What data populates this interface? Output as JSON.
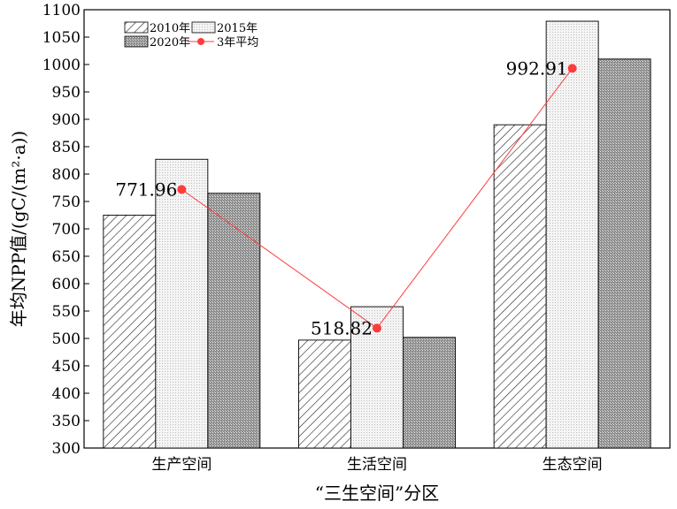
{
  "chart_data": {
    "type": "bar",
    "categories": [
      "生产空间",
      "生活空间",
      "生态空间"
    ],
    "series": [
      {
        "name": "2010年",
        "values": [
          725,
          497,
          890
        ],
        "pattern": "diagonal-hatch"
      },
      {
        "name": "2015年",
        "values": [
          827,
          558,
          1079
        ],
        "pattern": "light-dots"
      },
      {
        "name": "2020年",
        "values": [
          765,
          502,
          1010
        ],
        "pattern": "dense-crosshatch"
      }
    ],
    "line": {
      "name": "3年平均",
      "values": [
        771.96,
        518.82,
        992.91
      ],
      "labels": [
        "771.96",
        "518.82",
        "992.91"
      ],
      "color": "#ff3b3b"
    },
    "xlabel": "“三生空间”分区",
    "ylabel": "年均NPP值/(gC/(m²·a))",
    "ylim": [
      300,
      1100
    ],
    "yticks": [
      300,
      350,
      400,
      450,
      500,
      550,
      600,
      650,
      700,
      750,
      800,
      850,
      900,
      950,
      1000,
      1050,
      1100
    ],
    "grid": false,
    "legend_position": "top-left"
  }
}
